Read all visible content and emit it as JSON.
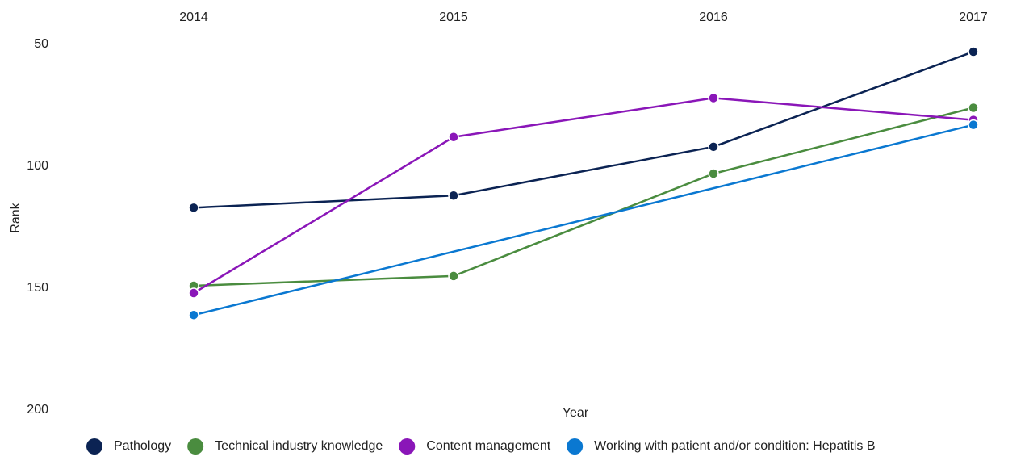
{
  "chart_data": {
    "type": "line",
    "x_label": "Year",
    "y_label": "Rank",
    "x": [
      2014,
      2015,
      2016,
      2017
    ],
    "xlim": [
      2014,
      2017
    ],
    "xticks": [
      2014,
      2015,
      2016,
      2017
    ],
    "ylim": [
      50,
      200
    ],
    "yticks": [
      50,
      100,
      150,
      200
    ],
    "y_inverted": true,
    "legend": "bottom",
    "series": [
      {
        "name": "Pathology",
        "color": "#0b2353",
        "values": [
          117,
          112,
          92,
          53
        ]
      },
      {
        "name": "Technical industry knowledge",
        "color": "#4a8c3f",
        "values": [
          149,
          145,
          103,
          76
        ]
      },
      {
        "name": "Content management",
        "color": "#8a16b8",
        "values": [
          152,
          88,
          72,
          81
        ]
      },
      {
        "name": "Working with patient and/or condition: Hepatitis B",
        "color": "#0a78d1",
        "x": [
          2014,
          2017
        ],
        "values": [
          161,
          83
        ]
      }
    ]
  }
}
